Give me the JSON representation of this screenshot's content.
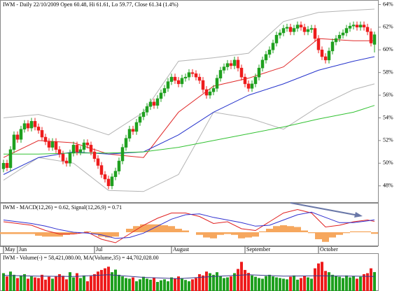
{
  "chart_data": [
    {
      "type": "candlestick",
      "title": "IWM - Daily 22/10/2009 Open 60.48, Hi 61.61, Lo 59.77, Close 61.34 (1.4%)",
      "categories": [
        "May",
        null,
        null,
        null,
        "Jun",
        null,
        null,
        null,
        null,
        null,
        null,
        null,
        null,
        null,
        null,
        null,
        null,
        null,
        null,
        null,
        null,
        null,
        null,
        null,
        null,
        null,
        "Jul",
        null,
        null,
        null,
        null,
        null,
        null,
        null,
        null,
        null,
        null,
        null,
        null,
        null,
        null,
        null,
        null,
        null,
        null,
        null,
        null,
        null,
        "August",
        null,
        null,
        null,
        null,
        null,
        null,
        null,
        null,
        null,
        null,
        null,
        null,
        null,
        null,
        null,
        null,
        null,
        null,
        null,
        null,
        "September",
        null,
        null,
        null,
        null,
        null,
        null,
        null,
        null,
        null,
        null,
        null,
        null,
        null,
        null,
        null,
        null,
        null,
        null,
        null,
        null,
        "October",
        null,
        null,
        null,
        null,
        null,
        null,
        null,
        null,
        null,
        null,
        null,
        null,
        null,
        null,
        null,
        null
      ],
      "open": [
        49.5,
        50.0,
        49.6,
        51.2,
        52.5,
        52.1,
        53.0,
        53.5,
        53.1,
        53.7,
        53.2,
        52.9,
        52.3,
        51.9,
        51.4,
        51.9,
        51.2,
        50.8,
        50.2,
        50.0,
        50.9,
        51.6,
        51.0,
        51.2,
        51.8,
        51.6,
        51.0,
        50.4,
        49.8,
        49.0,
        48.6,
        48.0,
        48.8,
        49.3,
        50.2,
        51.4,
        52.2,
        53.0,
        52.8,
        53.6,
        54.1,
        54.5,
        55.0,
        55.4,
        55.1,
        55.7,
        56.2,
        56.6,
        57.2,
        57.6,
        57.3,
        57.0,
        57.5,
        57.6,
        58.0,
        57.9,
        57.6,
        57.3,
        56.5,
        56.0,
        56.3,
        56.6,
        57.5,
        58.2,
        58.5,
        58.8,
        58.6,
        59.1,
        58.4,
        57.6,
        57.0,
        56.6,
        57.0,
        57.6,
        58.4,
        59.1,
        59.6,
        60.0,
        60.6,
        61.3,
        61.5,
        61.9,
        62.0,
        61.6,
        61.9,
        62.2,
        62.0,
        61.6,
        61.8,
        61.9,
        61.0,
        60.0,
        59.4,
        59.1,
        59.9,
        60.7,
        61.0,
        61.3,
        61.5,
        61.9,
        62.1,
        62.2,
        62.0,
        62.2,
        62.0,
        61.6,
        60.48
      ],
      "high": [
        50.3,
        50.3,
        51.5,
        52.8,
        52.8,
        53.3,
        53.8,
        53.8,
        54.0,
        54.0,
        53.5,
        53.2,
        52.6,
        52.2,
        52.2,
        52.2,
        51.5,
        51.1,
        50.5,
        51.2,
        51.9,
        51.9,
        51.5,
        52.1,
        52.1,
        51.9,
        51.3,
        50.7,
        50.1,
        49.3,
        48.9,
        49.1,
        49.6,
        50.5,
        51.7,
        52.5,
        53.3,
        53.3,
        53.9,
        54.4,
        54.8,
        55.3,
        55.7,
        55.7,
        56.0,
        56.5,
        56.9,
        57.5,
        57.9,
        57.9,
        57.6,
        57.8,
        57.9,
        58.3,
        58.3,
        58.2,
        57.9,
        57.6,
        56.8,
        56.6,
        56.9,
        57.8,
        58.5,
        58.8,
        59.1,
        59.1,
        59.4,
        59.4,
        58.7,
        57.9,
        57.3,
        57.3,
        57.9,
        58.7,
        59.4,
        59.9,
        60.3,
        60.9,
        61.6,
        61.8,
        62.2,
        62.3,
        62.3,
        62.2,
        62.5,
        62.5,
        62.3,
        62.1,
        62.2,
        62.2,
        61.3,
        60.3,
        59.7,
        60.2,
        61.0,
        61.3,
        61.6,
        61.8,
        62.2,
        62.4,
        62.5,
        62.5,
        62.5,
        62.5,
        62.3,
        61.9,
        61.61
      ],
      "low": [
        49.2,
        49.3,
        49.3,
        50.9,
        51.8,
        51.8,
        52.7,
        52.8,
        52.8,
        52.9,
        52.6,
        52.0,
        51.6,
        51.1,
        51.1,
        50.9,
        50.5,
        49.9,
        49.7,
        49.7,
        50.6,
        50.7,
        50.7,
        50.9,
        51.3,
        50.7,
        50.1,
        49.5,
        48.7,
        48.3,
        47.7,
        47.7,
        48.5,
        49.0,
        49.9,
        51.1,
        51.9,
        52.5,
        52.5,
        53.3,
        53.8,
        54.2,
        54.7,
        54.8,
        54.8,
        55.4,
        55.9,
        56.3,
        56.9,
        57.0,
        56.7,
        56.7,
        57.2,
        57.3,
        57.6,
        57.3,
        57.0,
        56.2,
        55.7,
        55.7,
        56.0,
        56.3,
        57.2,
        57.9,
        58.2,
        58.3,
        58.3,
        58.1,
        57.3,
        56.7,
        56.3,
        56.3,
        56.7,
        57.3,
        58.1,
        58.8,
        59.3,
        59.7,
        60.3,
        61.0,
        61.2,
        61.6,
        61.3,
        61.3,
        61.6,
        61.7,
        61.3,
        61.3,
        61.5,
        60.7,
        59.7,
        59.1,
        58.8,
        58.8,
        59.6,
        60.4,
        60.7,
        61.0,
        61.2,
        61.6,
        61.8,
        61.7,
        61.7,
        61.7,
        61.3,
        60.3,
        59.77
      ],
      "close": [
        50.0,
        49.6,
        51.2,
        52.5,
        52.1,
        53.0,
        53.5,
        53.1,
        53.7,
        53.2,
        52.9,
        52.3,
        51.9,
        51.4,
        51.9,
        51.2,
        50.8,
        50.2,
        50.0,
        50.9,
        51.6,
        51.0,
        51.2,
        51.8,
        51.6,
        51.0,
        50.4,
        49.8,
        49.0,
        48.6,
        48.0,
        48.8,
        49.3,
        50.2,
        51.4,
        52.2,
        53.0,
        52.8,
        53.6,
        54.1,
        54.5,
        55.0,
        55.4,
        55.1,
        55.7,
        56.2,
        56.6,
        57.2,
        57.6,
        57.3,
        57.0,
        57.5,
        57.6,
        58.0,
        57.9,
        57.6,
        57.3,
        56.5,
        56.0,
        56.3,
        56.6,
        57.5,
        58.2,
        58.5,
        58.8,
        58.6,
        59.1,
        58.4,
        57.6,
        57.0,
        56.6,
        57.0,
        57.6,
        58.4,
        59.1,
        59.6,
        60.0,
        60.6,
        61.3,
        61.5,
        61.9,
        62.0,
        61.6,
        61.9,
        62.2,
        62.0,
        61.6,
        61.8,
        61.9,
        61.0,
        60.0,
        59.4,
        59.1,
        59.9,
        60.7,
        61.0,
        61.3,
        61.5,
        61.9,
        62.1,
        62.2,
        62.0,
        62.2,
        62.0,
        61.6,
        60.6,
        61.34
      ],
      "up_color": "#1fa01f",
      "down_color": "#ee1c1c",
      "lines": [
        {
          "color": "#b4b4b4",
          "x": [
            0,
            10,
            20,
            30,
            40,
            50,
            60,
            70,
            80,
            90,
            100,
            106
          ],
          "values": [
            54.0,
            54.3,
            53.5,
            52.5,
            54.5,
            59.0,
            59.3,
            59.7,
            62.5,
            63.3,
            63.5,
            63.6
          ]
        },
        {
          "color": "#b4b4b4",
          "x": [
            0,
            10,
            20,
            30,
            40,
            50,
            60,
            70,
            80,
            90,
            100,
            106
          ],
          "values": [
            48.5,
            50.5,
            50.0,
            47.6,
            47.5,
            49.0,
            54.5,
            54.0,
            53.0,
            55.0,
            56.5,
            57.0
          ]
        },
        {
          "color": "#e02a2a",
          "x": [
            0,
            10,
            20,
            30,
            40,
            50,
            60,
            70,
            80,
            90,
            100,
            106
          ],
          "values": [
            50.5,
            52.0,
            51.8,
            50.8,
            50.5,
            54.5,
            56.8,
            57.5,
            58.5,
            61.0,
            60.8,
            60.8
          ]
        },
        {
          "color": "#2533cc",
          "x": [
            0,
            10,
            20,
            30,
            40,
            50,
            60,
            70,
            80,
            90,
            100,
            106
          ],
          "values": [
            49.0,
            50.5,
            51.0,
            50.8,
            51.0,
            52.5,
            54.5,
            56.0,
            57.0,
            58.2,
            59.0,
            59.4
          ]
        },
        {
          "color": "#33c233",
          "x": [
            0,
            10,
            20,
            30,
            40,
            50,
            60,
            70,
            80,
            90,
            100,
            106
          ],
          "values": [
            50.8,
            50.8,
            50.9,
            50.9,
            51.0,
            51.4,
            52.0,
            52.6,
            53.2,
            53.9,
            54.5,
            55.1
          ]
        }
      ],
      "ylim": [
        46.5,
        64.4
      ],
      "yticks": [
        {
          "value": 48,
          "label": "48%"
        },
        {
          "value": 50,
          "label": "50%"
        },
        {
          "value": 52,
          "label": "52%"
        },
        {
          "value": 54,
          "label": "54%"
        },
        {
          "value": 56,
          "label": "56%"
        },
        {
          "value": 58,
          "label": "58%"
        },
        {
          "value": 60,
          "label": "60%"
        },
        {
          "value": 62,
          "label": "62%"
        },
        {
          "value": 64,
          "label": "64%"
        }
      ]
    },
    {
      "type": "macd",
      "title": "IWM - MACD(12,26) = 0.62, Signal(12,26,9) = 0.71",
      "ylim": [
        -0.8,
        1.6
      ],
      "histogram": {
        "color": "#f6a75e",
        "x": [
          0,
          2,
          4,
          6,
          8,
          10,
          12,
          14,
          16,
          18,
          20,
          22,
          24,
          26,
          28,
          30,
          32,
          34,
          36,
          38,
          40,
          42,
          44,
          46,
          48,
          50,
          52,
          54,
          56,
          58,
          60,
          62,
          64,
          66,
          68,
          70,
          72,
          74,
          76,
          78,
          80,
          82,
          84,
          86,
          88,
          90,
          92,
          94,
          96,
          98,
          100,
          102,
          104,
          106
        ],
        "values": [
          -0.1,
          -0.1,
          -0.1,
          -0.1,
          -0.1,
          -0.2,
          -0.25,
          -0.25,
          -0.25,
          -0.15,
          -0.1,
          0.0,
          0.05,
          -0.1,
          -0.25,
          -0.3,
          -0.25,
          0.0,
          0.2,
          0.35,
          0.45,
          0.45,
          0.45,
          0.4,
          0.35,
          0.2,
          0.1,
          0.0,
          -0.15,
          -0.3,
          -0.35,
          -0.15,
          -0.1,
          -0.15,
          -0.35,
          -0.3,
          -0.25,
          0.05,
          0.2,
          0.35,
          0.4,
          0.35,
          0.3,
          0.1,
          -0.05,
          -0.4,
          -0.55,
          -0.3,
          -0.15,
          -0.05,
          0.05,
          0.05,
          0.05,
          -0.09
        ]
      },
      "lines": [
        {
          "color": "#e02020",
          "x": [
            0,
            4,
            8,
            12,
            16,
            20,
            24,
            28,
            32,
            36,
            40,
            44,
            48,
            52,
            56,
            60,
            64,
            68,
            72,
            76,
            80,
            84,
            88,
            92,
            96,
            100,
            104,
            106
          ],
          "values": [
            0.6,
            0.5,
            0.4,
            0.1,
            -0.1,
            -0.1,
            0.0,
            -0.4,
            -0.6,
            -0.1,
            0.4,
            0.8,
            1.1,
            1.1,
            0.9,
            0.5,
            0.6,
            0.2,
            0.1,
            0.6,
            1.1,
            1.3,
            1.1,
            0.3,
            0.4,
            0.6,
            0.7,
            0.62
          ]
        },
        {
          "color": "#3030d0",
          "x": [
            0,
            4,
            8,
            12,
            16,
            20,
            24,
            28,
            32,
            36,
            40,
            44,
            48,
            52,
            56,
            60,
            64,
            68,
            72,
            76,
            80,
            84,
            88,
            92,
            96,
            100,
            104,
            106
          ],
          "values": [
            0.7,
            0.6,
            0.5,
            0.35,
            0.15,
            0.0,
            -0.05,
            -0.15,
            -0.35,
            -0.3,
            -0.05,
            0.35,
            0.75,
            1.0,
            1.05,
            0.85,
            0.7,
            0.55,
            0.35,
            0.4,
            0.7,
            1.0,
            1.15,
            0.85,
            0.55,
            0.55,
            0.65,
            0.71
          ]
        }
      ]
    },
    {
      "type": "volume",
      "title": "IWM - Volume(-) = 58,421,080.00, MA(Volume,35) = 44,702,028.00",
      "ylim": [
        0,
        95
      ],
      "values": [
        55,
        45,
        60,
        50,
        40,
        48,
        52,
        38,
        45,
        42,
        40,
        50,
        35,
        44,
        38,
        46,
        52,
        47,
        36,
        58,
        42,
        55,
        40,
        48,
        30,
        46,
        52,
        60,
        65,
        70,
        75,
        58,
        66,
        50,
        45,
        40,
        38,
        42,
        30,
        36,
        44,
        38,
        35,
        40,
        28,
        33,
        36,
        30,
        42,
        38,
        45,
        40,
        34,
        30,
        36,
        40,
        52,
        48,
        60,
        55,
        50,
        58,
        46,
        40,
        42,
        45,
        55,
        68,
        90,
        65,
        56,
        48,
        44,
        40,
        38,
        46,
        50,
        45,
        42,
        40,
        38,
        36,
        44,
        48,
        35,
        40,
        46,
        42,
        38,
        70,
        85,
        90,
        62,
        58,
        50,
        46,
        44,
        40,
        48,
        42,
        46,
        38,
        44,
        52,
        55,
        70,
        58.42
      ],
      "up_color": "#1fa01f",
      "down_color": "#ee1c1c",
      "lines": [
        {
          "color": "#3a3a8c",
          "x": [
            0,
            10,
            20,
            30,
            40,
            50,
            60,
            70,
            80,
            90,
            100,
            106
          ],
          "values": [
            48,
            46,
            45,
            50,
            42,
            38,
            45,
            50,
            46,
            47,
            46,
            44.7
          ]
        }
      ]
    }
  ]
}
